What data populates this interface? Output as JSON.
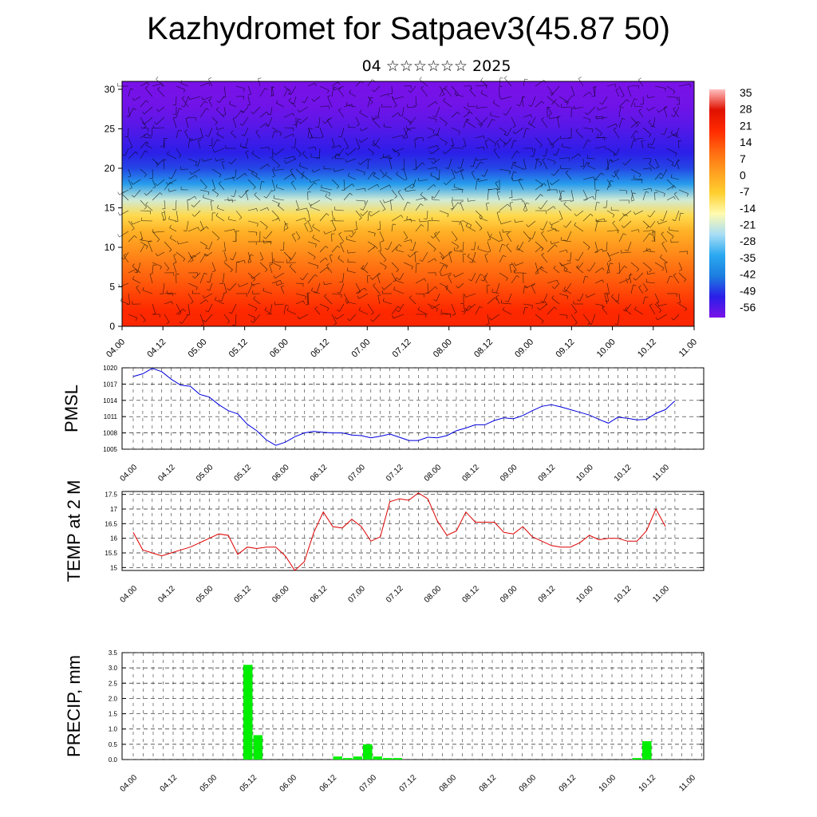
{
  "title": "Kazhydromet for Satpaev3(45.87 50)",
  "subtitle": "04 ☆☆☆☆☆☆ 2025",
  "time_labels": [
    "04.00",
    "04.12",
    "05.00",
    "05.12",
    "06.00",
    "06.12",
    "07.00",
    "07.12",
    "08.00",
    "08.12",
    "09.00",
    "09.12",
    "10.00",
    "10.12",
    "11.00"
  ],
  "chart_data": [
    {
      "type": "heatmap",
      "title": "",
      "xlabel": "",
      "ylabel": "",
      "x_categories": [
        "04.00",
        "04.12",
        "05.00",
        "05.12",
        "06.00",
        "06.12",
        "07.00",
        "07.12",
        "08.00",
        "08.12",
        "09.00",
        "09.12",
        "10.00",
        "10.12",
        "11.00"
      ],
      "ylim": [
        0,
        31
      ],
      "yticks": [
        0,
        5,
        10,
        15,
        20,
        25,
        30
      ],
      "colorbar": {
        "labels": [
          "35",
          "28",
          "21",
          "14",
          "7",
          "0",
          "-7",
          "-14",
          "-21",
          "-28",
          "-35",
          "-42",
          "-49",
          "-56"
        ],
        "range": [
          -63,
          38
        ],
        "colors": [
          "#7a12e8",
          "#2a1ee8",
          "#1c7ee0",
          "#2aa8f0",
          "#a8ddf5",
          "#fffbb0",
          "#ffd030",
          "#ffa020",
          "#ff6a10",
          "#ff2a00",
          "#e01000",
          "#ffc0c0"
        ]
      },
      "profile_y": [
        0,
        2,
        4,
        6,
        8,
        10,
        12,
        14,
        16,
        18,
        20,
        22,
        24,
        26,
        28,
        31
      ],
      "profile_value": [
        21,
        20,
        16,
        12,
        8,
        3,
        -2,
        -10,
        -22,
        -38,
        -50,
        -54,
        -57,
        -60,
        -62,
        -63
      ],
      "series": [
        {
          "values": []
        }
      ]
    },
    {
      "type": "line",
      "ylabel": "PMSL",
      "ylim": [
        1005,
        1020
      ],
      "yticks": [
        1005,
        1008,
        1011,
        1014,
        1017,
        1020
      ],
      "color": "#0000dd",
      "series": [
        {
          "values": [
            1018.4,
            1018.9,
            1019.9,
            1019.3,
            1017.9,
            1016.8,
            1016.6,
            1015.1,
            1014.6,
            1013.2,
            1012.1,
            1011.5,
            1009.6,
            1008.4,
            1006.7,
            1005.7,
            1006.3,
            1007.3,
            1008.0,
            1008.3,
            1008.1,
            1008.0,
            1008.0,
            1007.6,
            1007.5,
            1007.1,
            1007.4,
            1007.8,
            1007.2,
            1006.6,
            1006.6,
            1007.2,
            1007.1,
            1007.5,
            1008.4,
            1008.9,
            1009.5,
            1009.5,
            1010.3,
            1010.8,
            1010.6,
            1011.2,
            1012.1,
            1012.9,
            1013.2,
            1012.8,
            1012.3,
            1011.8,
            1011.3,
            1010.5,
            1009.8,
            1010.9,
            1010.7,
            1010.4,
            1010.5,
            1011.6,
            1012.3,
            1013.9
          ]
        }
      ]
    },
    {
      "type": "line",
      "ylabel": "TEMP at 2 M",
      "ylim": [
        14.9,
        17.6
      ],
      "yticks": [
        15.0,
        15.5,
        16.0,
        16.5,
        17.0,
        17.5
      ],
      "color": "#dd0000",
      "series": [
        {
          "values": [
            16.2,
            15.6,
            15.5,
            15.4,
            15.5,
            15.6,
            15.7,
            15.85,
            16.0,
            16.15,
            16.1,
            15.45,
            15.7,
            15.65,
            15.7,
            15.7,
            15.4,
            14.9,
            15.2,
            16.2,
            16.9,
            16.4,
            16.35,
            16.65,
            16.4,
            15.9,
            16.05,
            17.25,
            17.35,
            17.3,
            17.55,
            17.35,
            16.6,
            16.1,
            16.25,
            16.9,
            16.55,
            16.55,
            16.55,
            16.2,
            16.15,
            16.4,
            16.05,
            15.9,
            15.75,
            15.7,
            15.7,
            15.85,
            16.1,
            15.95,
            16.0,
            16.0,
            15.9,
            15.9,
            16.25,
            17.0,
            16.4
          ]
        }
      ]
    },
    {
      "type": "bar",
      "ylabel": "PRECIP, mm",
      "ylim": [
        0,
        3.5
      ],
      "yticks": [
        "0.0",
        "0.5",
        "1.0",
        "1.5",
        "2.0",
        "2.5",
        "3.0",
        "3.5"
      ],
      "color": "#00ee00",
      "series": [
        {
          "values": [
            0,
            0,
            0,
            0,
            0,
            0,
            0,
            0,
            0,
            0,
            0,
            3.1,
            0.8,
            0,
            0,
            0,
            0,
            0,
            0,
            0,
            0.1,
            0.05,
            0.1,
            0.5,
            0.1,
            0.05,
            0.05,
            0,
            0,
            0,
            0,
            0,
            0,
            0,
            0,
            0,
            0,
            0,
            0,
            0,
            0,
            0,
            0,
            0,
            0,
            0,
            0,
            0,
            0,
            0,
            0.05,
            0.6,
            0,
            0,
            0,
            0,
            0,
            0
          ]
        }
      ]
    }
  ]
}
